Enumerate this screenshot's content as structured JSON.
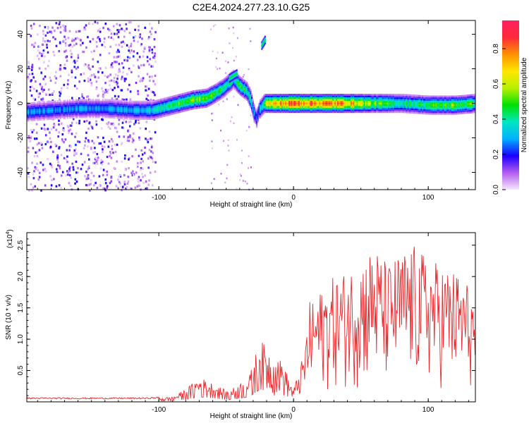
{
  "title": "C2E4.2024.277.23.10.G25",
  "chart_data": [
    {
      "type": "heatmap",
      "xlabel": "Height of straight line (km)",
      "ylabel": "Frequency (Hz)",
      "xlim": [
        -198,
        135
      ],
      "ylim": [
        -50,
        48
      ],
      "x_ticks": [
        -100,
        0,
        100
      ],
      "x_tick_labels": [
        "-100",
        "0",
        "100"
      ],
      "y_ticks": [
        -40,
        -20,
        0,
        20,
        40
      ],
      "y_tick_labels": [
        "-40",
        "-20",
        "0",
        "20",
        "40"
      ],
      "colorbar": {
        "label": "Normalized spectral amplitude",
        "range": [
          0,
          0.96
        ],
        "ticks": [
          0.0,
          0.2,
          0.4,
          0.6,
          0.8
        ],
        "tick_labels": [
          "0.0",
          "0.2",
          "0.4",
          "0.6",
          "0.8"
        ],
        "colors": [
          "#f6e6fb",
          "#b35cf0",
          "#1a00ff",
          "#00b0ff",
          "#00e6c0",
          "#00e000",
          "#b8f000",
          "#ffe600",
          "#ff9000",
          "#ff2a3a",
          "#ff2060"
        ]
      },
      "ridge": {
        "x": [
          -198,
          -180,
          -160,
          -140,
          -120,
          -105,
          -95,
          -85,
          -75,
          -65,
          -58,
          -52,
          -48,
          -45,
          -40,
          -35,
          -32,
          -30,
          -28,
          -26,
          -22,
          -20,
          0,
          20,
          40,
          60,
          80,
          100,
          120,
          135
        ],
        "y": [
          -5,
          -4,
          -3,
          -3,
          -4,
          -4,
          -2,
          0,
          2,
          3,
          6,
          9,
          12,
          14,
          10,
          7,
          2,
          -5,
          -9,
          -4,
          0,
          0,
          0,
          0,
          0,
          0,
          0,
          -1,
          -1,
          0
        ],
        "amplitude": [
          0.3,
          0.28,
          0.3,
          0.3,
          0.33,
          0.38,
          0.45,
          0.52,
          0.55,
          0.55,
          0.5,
          0.48,
          0.45,
          0.42,
          0.5,
          0.45,
          0.4,
          0.3,
          0.25,
          0.3,
          0.6,
          0.7,
          0.92,
          0.85,
          0.82,
          0.55,
          0.45,
          0.5,
          0.55,
          0.5
        ]
      },
      "secondary_features": [
        {
          "x": [
            -24,
            -21
          ],
          "y": [
            34,
            38
          ],
          "amplitude": 0.45
        },
        {
          "x": [
            -48,
            -42
          ],
          "y": [
            15,
            18
          ],
          "amplitude": 0.45
        }
      ]
    },
    {
      "type": "line",
      "xlabel": "Height of straight line (km)",
      "ylabel": "SNR (10 * v/v)",
      "multiplier_label": "(x10",
      "multiplier_exp": "4",
      "multiplier_close": ")",
      "xlim": [
        -198,
        135
      ],
      "ylim": [
        0,
        2.7
      ],
      "x_ticks": [
        -100,
        0,
        100
      ],
      "x_tick_labels": [
        "-100",
        "0",
        "100"
      ],
      "y_ticks": [
        0.5,
        1.0,
        1.5,
        2.0,
        2.5
      ],
      "y_tick_labels": [
        "0.5",
        "1.0",
        "1.5",
        "2.0",
        "2.5"
      ],
      "color": "#e8292b",
      "envelope_x": [
        -198,
        -150,
        -110,
        -90,
        -80,
        -70,
        -60,
        -50,
        -45,
        -40,
        -33,
        -25,
        -15,
        -8,
        -3,
        0,
        8,
        12,
        18,
        22,
        30,
        40,
        50,
        60,
        70,
        80,
        90,
        100,
        110,
        120,
        130,
        135
      ],
      "envelope_y": [
        0.06,
        0.06,
        0.06,
        0.08,
        0.2,
        0.4,
        0.3,
        0.18,
        0.22,
        0.3,
        0.4,
        1.0,
        0.75,
        0.65,
        0.35,
        0.2,
        0.8,
        1.6,
        1.7,
        1.85,
        2.0,
        2.1,
        2.3,
        2.5,
        2.2,
        2.4,
        2.5,
        2.3,
        2.2,
        2.1,
        1.9,
        1.6
      ]
    }
  ]
}
